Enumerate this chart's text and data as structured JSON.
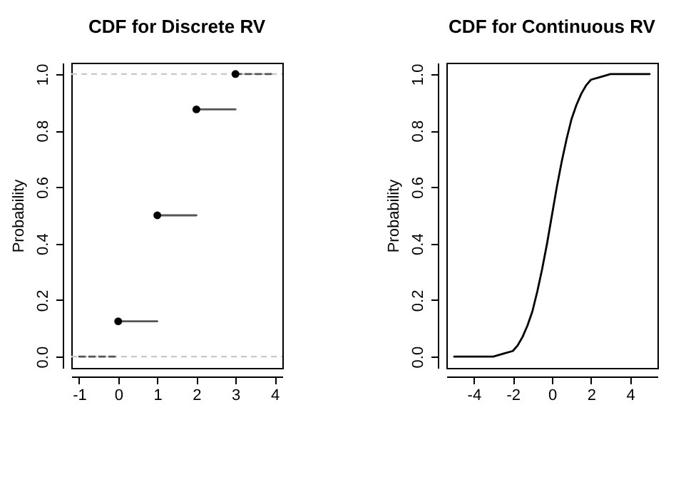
{
  "chart_data": [
    {
      "type": "line",
      "title": "CDF for Discrete RV",
      "ylabel": "Probability",
      "xlim": [
        -1.2,
        4.2
      ],
      "xticks": [
        -1,
        0,
        1,
        2,
        3,
        4
      ],
      "ylim": [
        -0.04,
        1.04
      ],
      "yticks": [
        {
          "value": 0,
          "label": "0.0"
        },
        {
          "value": 0.2,
          "label": "0.2"
        },
        {
          "value": 0.4,
          "label": "0.4"
        },
        {
          "value": 0.6,
          "label": "0.6"
        },
        {
          "value": 0.8,
          "label": "0.8"
        },
        {
          "value": 1,
          "label": "1.0"
        }
      ],
      "ref_lines": [
        {
          "axis": "y",
          "value": 0,
          "color": "#c8c8c8",
          "line_style": "dashed"
        },
        {
          "axis": "y",
          "value": 1,
          "color": "#c8c8c8",
          "line_style": "dashed"
        }
      ],
      "series": [
        {
          "color": "#555555",
          "line_style": "dashed",
          "x": [
            -1,
            0
          ],
          "values": [
            0,
            0
          ]
        },
        {
          "color": "#555555",
          "x": [
            0,
            1
          ],
          "values": [
            0.125,
            0.125
          ]
        },
        {
          "color": "#555555",
          "x": [
            1,
            2
          ],
          "values": [
            0.5,
            0.5
          ]
        },
        {
          "color": "#555555",
          "x": [
            2,
            3
          ],
          "values": [
            0.875,
            0.875
          ]
        },
        {
          "color": "#555555",
          "line_style": "dashed",
          "x": [
            3,
            4
          ],
          "values": [
            1,
            1
          ]
        },
        {
          "type": "scatter",
          "color": "#000000",
          "marker": "circle",
          "x": [
            0,
            1,
            2,
            3
          ],
          "values": [
            0.125,
            0.5,
            0.875,
            1
          ]
        }
      ]
    },
    {
      "type": "line",
      "title": "CDF for Continuous RV",
      "ylabel": "Probability",
      "xlim": [
        -5.4,
        5.4
      ],
      "xticks": [
        -4,
        -2,
        0,
        2,
        4
      ],
      "ylim": [
        -0.04,
        1.04
      ],
      "yticks": [
        {
          "value": 0,
          "label": "0.0"
        },
        {
          "value": 0.2,
          "label": "0.2"
        },
        {
          "value": 0.4,
          "label": "0.4"
        },
        {
          "value": 0.6,
          "label": "0.6"
        },
        {
          "value": 0.8,
          "label": "0.8"
        },
        {
          "value": 1,
          "label": "1.0"
        }
      ],
      "series": [
        {
          "color": "#000000",
          "x": [
            -5,
            -4,
            -3,
            -2.5,
            -2,
            -1.75,
            -1.5,
            -1.25,
            -1,
            -0.75,
            -0.5,
            -0.25,
            0,
            0.25,
            0.5,
            0.75,
            1,
            1.25,
            1.5,
            1.75,
            2,
            2.5,
            3,
            4,
            5
          ],
          "values": [
            0,
            0,
            0,
            0.01,
            0.02,
            0.04,
            0.07,
            0.11,
            0.16,
            0.23,
            0.31,
            0.4,
            0.5,
            0.6,
            0.69,
            0.77,
            0.84,
            0.89,
            0.93,
            0.96,
            0.98,
            0.99,
            1,
            1,
            1
          ]
        }
      ]
    }
  ]
}
